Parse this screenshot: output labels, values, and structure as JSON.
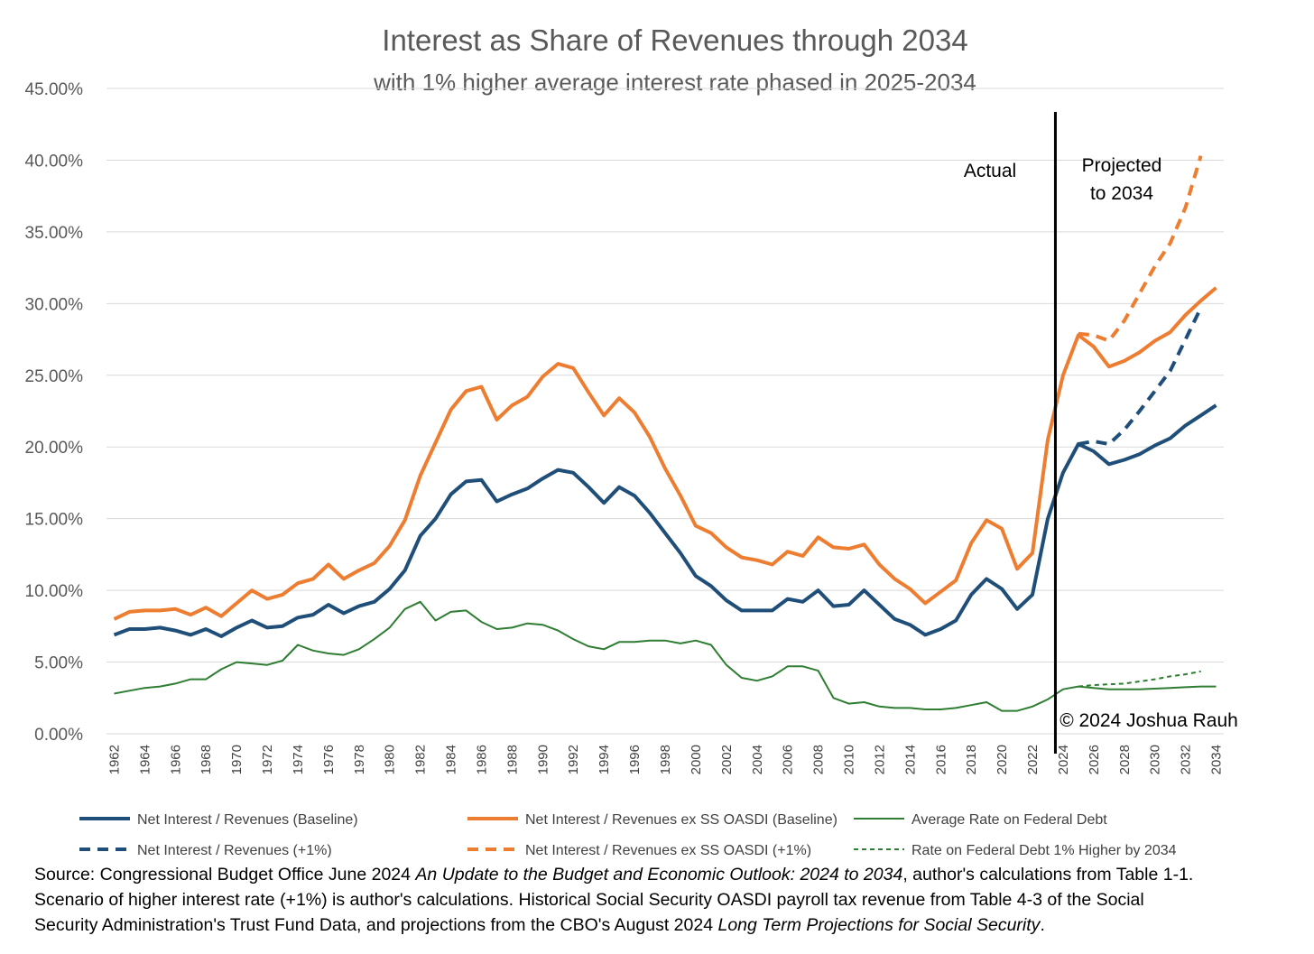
{
  "chart_data": {
    "type": "line",
    "title": "Interest as Share of Revenues through 2034",
    "subtitle": "with 1% higher average interest rate phased in 2025-2034",
    "y_tick_labels": [
      "0.00%",
      "5.00%",
      "10.00%",
      "15.00%",
      "20.00%",
      "25.00%",
      "30.00%",
      "35.00%",
      "40.00%",
      "45.00%"
    ],
    "ylim": [
      0,
      45
    ],
    "xlim": [
      1962,
      2034
    ],
    "x_tick_labels": [
      "1962",
      "1964",
      "1966",
      "1968",
      "1970",
      "1972",
      "1974",
      "1976",
      "1978",
      "1980",
      "1982",
      "1984",
      "1986",
      "1988",
      "1990",
      "1992",
      "1994",
      "1996",
      "1998",
      "2000",
      "2002",
      "2004",
      "2006",
      "2008",
      "2010",
      "2012",
      "2014",
      "2016",
      "2018",
      "2020",
      "2022",
      "2024",
      "2026",
      "2028",
      "2030",
      "2032",
      "2034"
    ],
    "grid": true,
    "divider_year": 2023.5,
    "annotations": {
      "actual": "Actual",
      "projected_line1": "Projected",
      "projected_line2": "to 2034",
      "copyright": "© 2024 Joshua Rauh"
    },
    "series": [
      {
        "name": "Net Interest / Revenues (Baseline)",
        "color": "#1f4e79",
        "dash": "solid",
        "x_start": 1962,
        "values": [
          6.9,
          7.3,
          7.3,
          7.4,
          7.2,
          6.9,
          7.3,
          6.8,
          7.4,
          7.9,
          7.4,
          7.5,
          8.1,
          8.3,
          9.0,
          8.4,
          8.9,
          9.2,
          10.1,
          11.4,
          13.8,
          15.0,
          16.7,
          17.6,
          17.7,
          16.2,
          16.7,
          17.1,
          17.8,
          18.4,
          18.2,
          17.2,
          16.1,
          17.2,
          16.6,
          15.4,
          14.0,
          12.6,
          11.0,
          10.3,
          9.3,
          8.6,
          8.6,
          8.6,
          9.4,
          9.2,
          10.0,
          8.9,
          9.0,
          10.0,
          9.0,
          8.0,
          7.6,
          6.9,
          7.3,
          7.9,
          9.7,
          10.8,
          10.1,
          8.7,
          9.7,
          15.0,
          18.2,
          20.2,
          19.7,
          18.8,
          19.1,
          19.5,
          20.1,
          20.6,
          21.5,
          22.2,
          22.9
        ]
      },
      {
        "name": "Net Interest / Revenues ex SS OASDI (Baseline)",
        "color": "#ed7d31",
        "dash": "solid",
        "x_start": 1962,
        "values": [
          8.0,
          8.5,
          8.6,
          8.6,
          8.7,
          8.3,
          8.8,
          8.2,
          9.1,
          10.0,
          9.4,
          9.7,
          10.5,
          10.8,
          11.8,
          10.8,
          11.4,
          11.9,
          13.1,
          14.9,
          18.0,
          20.3,
          22.6,
          23.9,
          24.2,
          21.9,
          22.9,
          23.5,
          24.9,
          25.8,
          25.5,
          23.8,
          22.2,
          23.4,
          22.4,
          20.7,
          18.5,
          16.6,
          14.5,
          14.0,
          13.0,
          12.3,
          12.1,
          11.8,
          12.7,
          12.4,
          13.7,
          13.0,
          12.9,
          13.2,
          11.8,
          10.8,
          10.1,
          9.1,
          9.9,
          10.7,
          13.3,
          14.9,
          14.3,
          11.5,
          12.6,
          20.5,
          25.0,
          27.8,
          27.0,
          25.6,
          26.0,
          26.6,
          27.4,
          28.0,
          29.2,
          30.2,
          31.1
        ]
      },
      {
        "name": "Average Rate on Federal Debt",
        "color": "#2e7d32",
        "dash": "solid",
        "x_start": 1962,
        "values": [
          2.8,
          3.0,
          3.2,
          3.3,
          3.5,
          3.8,
          3.8,
          4.5,
          5.0,
          4.9,
          4.8,
          5.1,
          6.2,
          5.8,
          5.6,
          5.5,
          5.9,
          6.6,
          7.4,
          8.7,
          9.2,
          7.9,
          8.5,
          8.6,
          7.8,
          7.3,
          7.4,
          7.7,
          7.6,
          7.2,
          6.6,
          6.1,
          5.9,
          6.4,
          6.4,
          6.5,
          6.5,
          6.3,
          6.5,
          6.2,
          4.8,
          3.9,
          3.7,
          4.0,
          4.7,
          4.7,
          4.4,
          2.5,
          2.1,
          2.2,
          1.9,
          1.8,
          1.8,
          1.7,
          1.7,
          1.8,
          2.0,
          2.2,
          1.6,
          1.6,
          1.9,
          2.4,
          3.1,
          3.3,
          3.2,
          3.1,
          3.1,
          3.1,
          3.15,
          3.2,
          3.25,
          3.3,
          3.3
        ]
      },
      {
        "name": "Net Interest / Revenues (+1%)",
        "color": "#1f4e79",
        "dash": "dashed",
        "x_start": 2025,
        "values": [
          20.2,
          20.4,
          20.2,
          21.2,
          22.5,
          23.9,
          25.3,
          27.5,
          29.7
        ]
      },
      {
        "name": "Net Interest / Revenues ex SS OASDI (+1%)",
        "color": "#ed7d31",
        "dash": "dashed",
        "x_start": 2025,
        "values": [
          27.9,
          27.8,
          27.4,
          28.8,
          30.7,
          32.6,
          34.2,
          36.7,
          40.3
        ]
      },
      {
        "name": "Rate on Federal Debt 1% Higher by 2034",
        "color": "#2e7d32",
        "dash": "dashed",
        "x_start": 2025,
        "values": [
          3.3,
          3.4,
          3.45,
          3.5,
          3.65,
          3.8,
          4.0,
          4.15,
          4.35
        ]
      }
    ]
  },
  "source": {
    "line1_a": "Source: Congressional Budget Office June 2024 ",
    "line1_italic": "An Update to the Budget and Economic Outlook: 2024 to 2034",
    "line1_b": ", author's calculations from Table 1-1.",
    "line2": "Scenario of higher interest rate (+1%) is author's calculations. Historical Social Security OASDI payroll tax revenue from Table 4-3 of the Social",
    "line3_a": "Security Administration's Trust Fund Data, and projections from the CBO's August 2024 ",
    "line3_italic": "Long Term Projections for Social Security",
    "line3_b": "."
  }
}
